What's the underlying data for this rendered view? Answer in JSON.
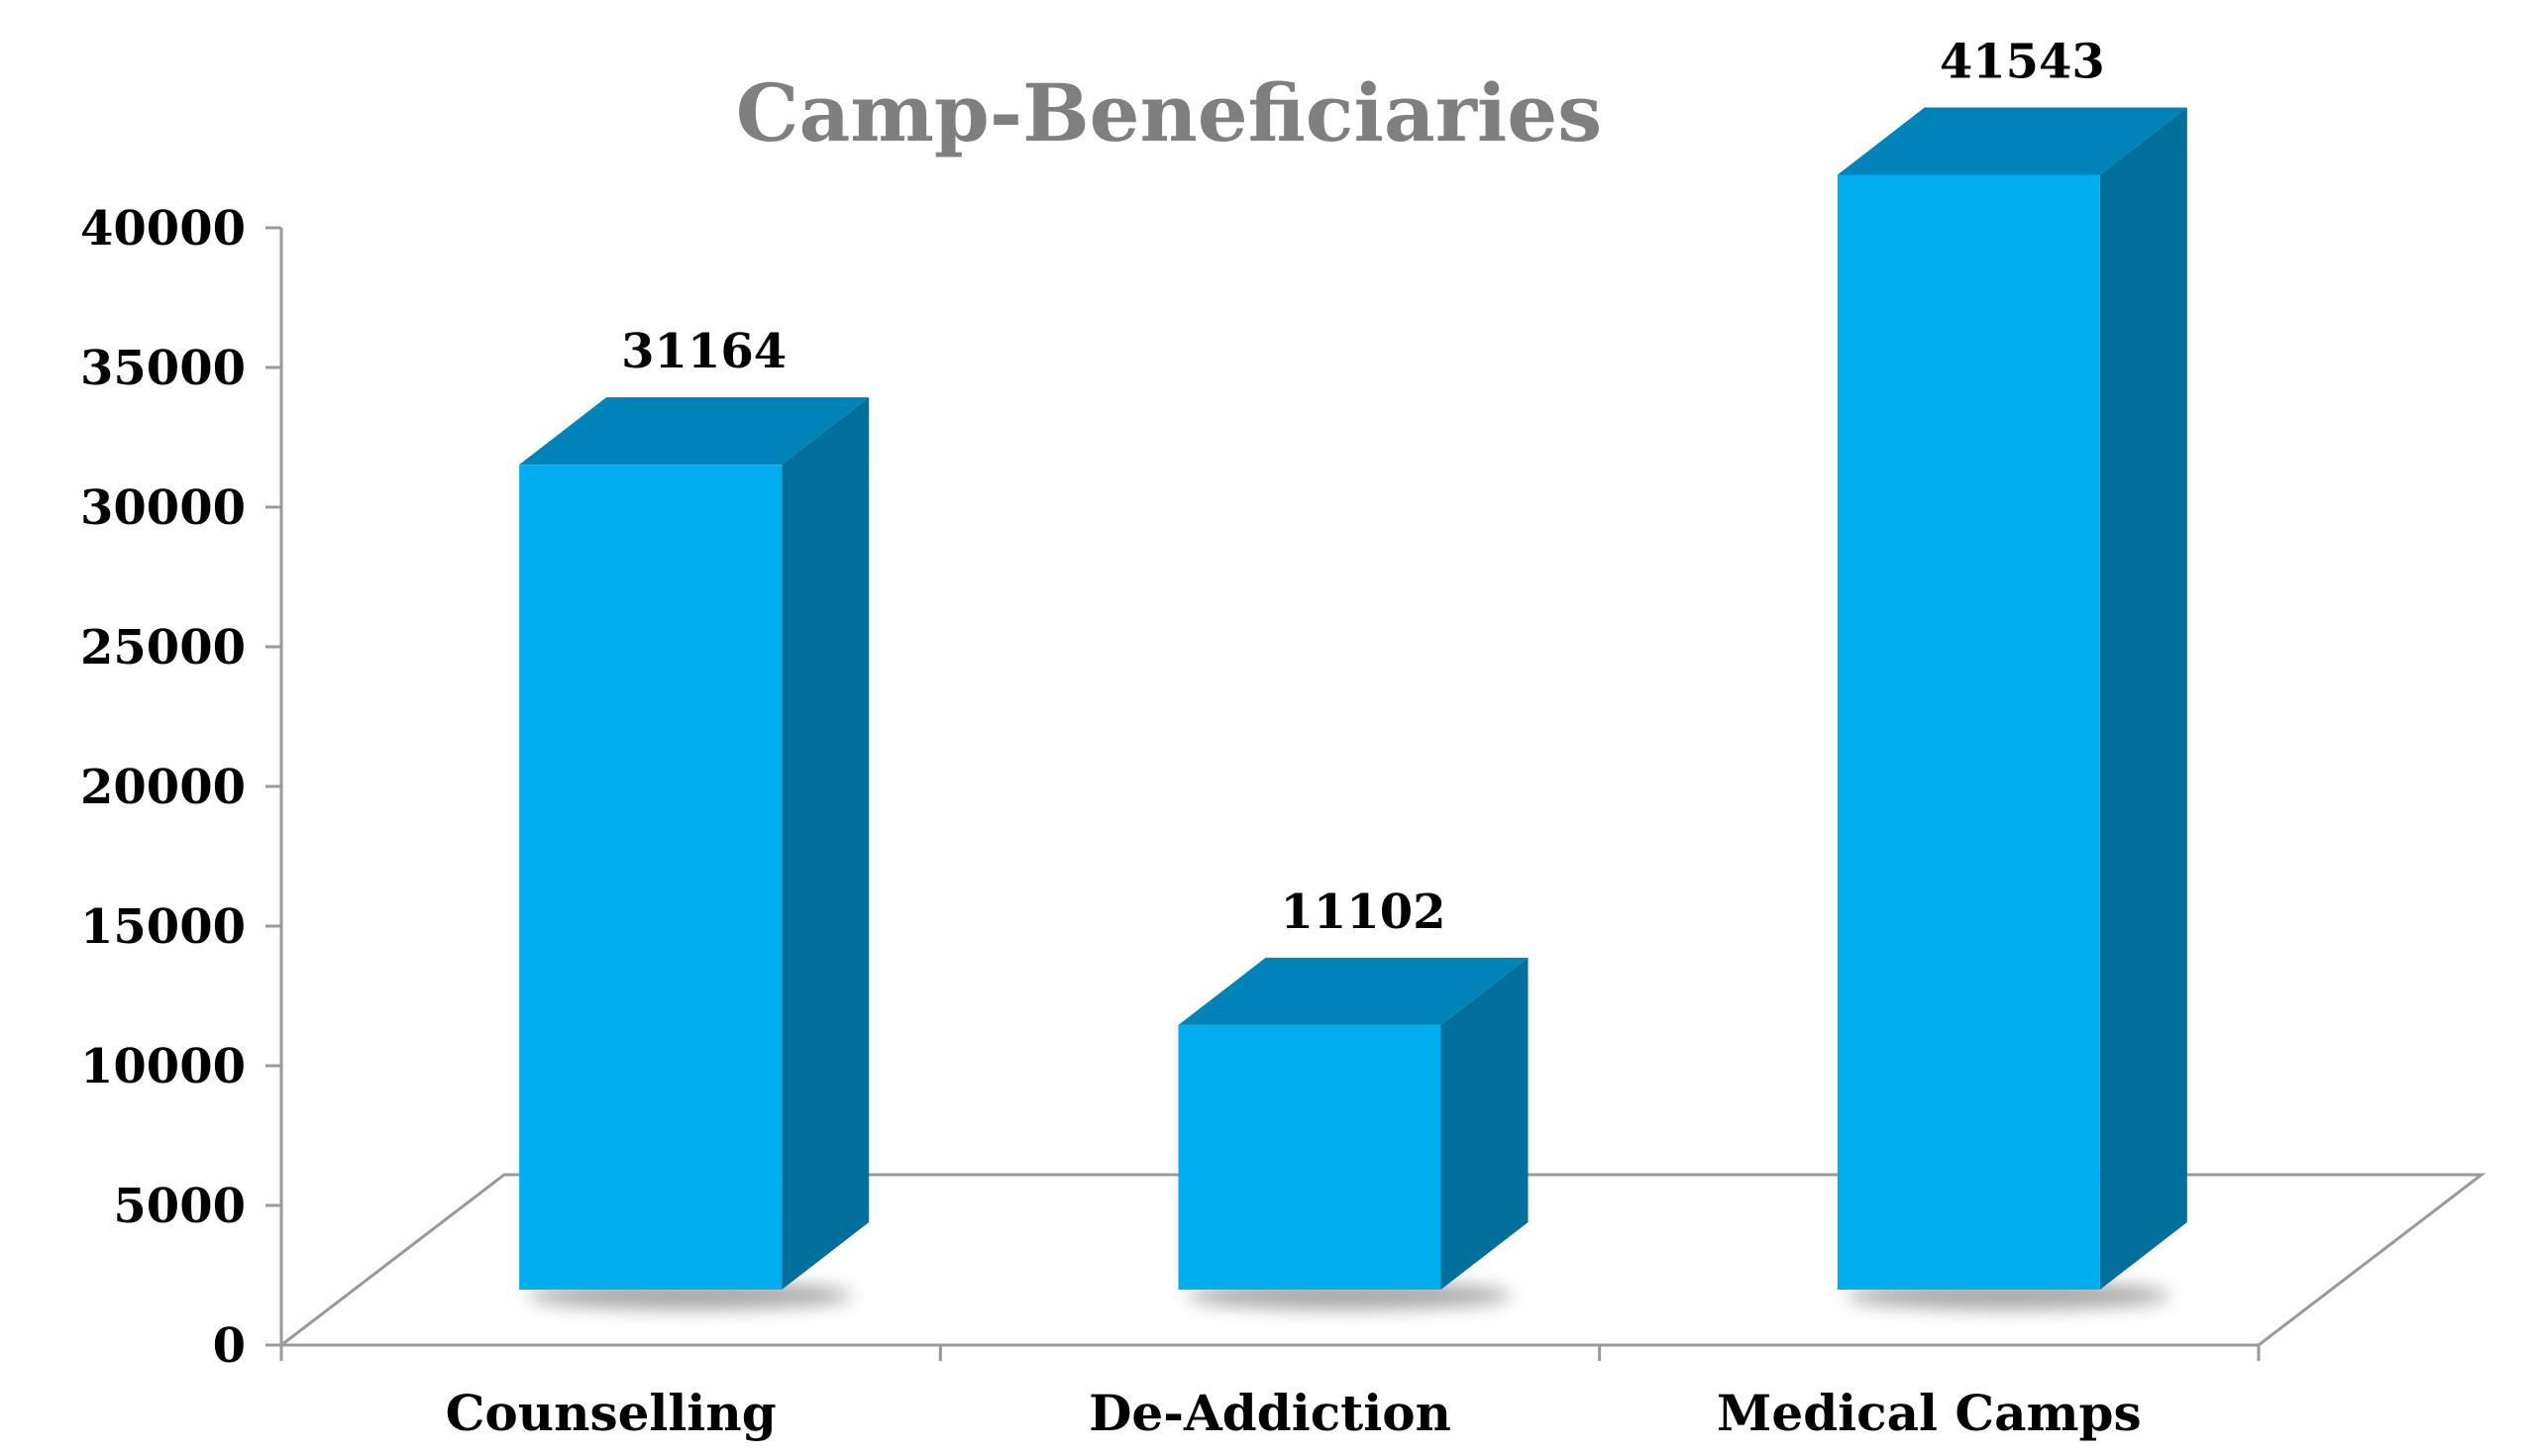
{
  "chart_data": {
    "type": "bar",
    "title": "Camp-Beneficiaries",
    "categories": [
      "Counselling",
      "De-Addiction",
      "Medical Camps"
    ],
    "values": [
      31164,
      11102,
      41543
    ],
    "data_labels": [
      "31164",
      "11102",
      "41543"
    ],
    "y_ticks": [
      "0",
      "5000",
      "10000",
      "15000",
      "20000",
      "25000",
      "30000",
      "35000",
      "40000"
    ],
    "ylim": [
      0,
      40000
    ],
    "xlabel": "",
    "ylabel": "",
    "grid": false,
    "legend": "none",
    "style": "3d-column",
    "colors": {
      "bar_front": "#00AEEF",
      "bar_top": "#0083B8",
      "bar_side": "#006F9B",
      "title": "#7F7F7F",
      "axis": "#999999",
      "text": "#000000"
    }
  }
}
